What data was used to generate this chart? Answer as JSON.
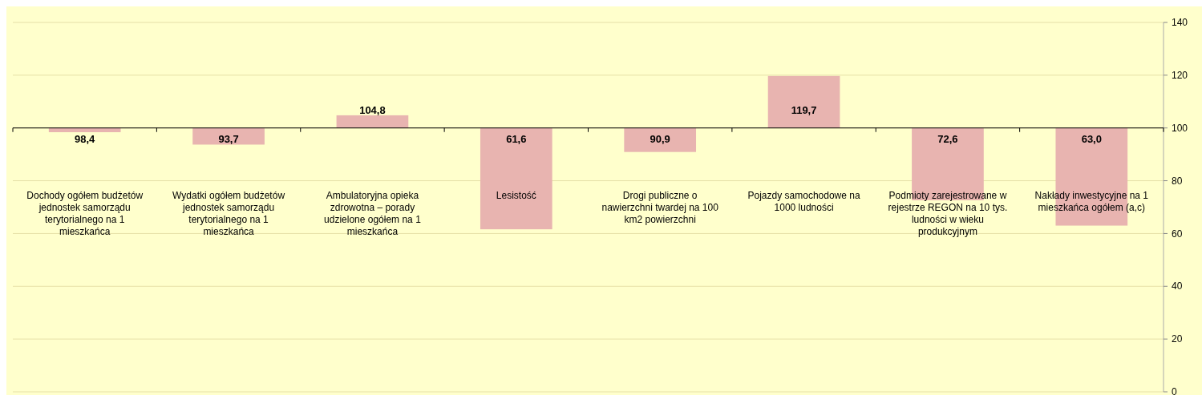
{
  "chart_data": {
    "type": "bar",
    "categories": [
      "Dochody ogółem budżetów jednostek samorządu terytorialnego na 1 mieszkańca",
      "Wydatki ogółem budżetów jednostek samorządu terytorialnego na 1 mieszkańca",
      "Ambulatoryjna opieka zdrowotna – porady udzielone ogółem na 1 mieszkańca",
      "Lesistość",
      "Drogi publiczne o nawierzchni twardej na 100 km2 powierzchni",
      "Pojazdy samochodowe na 1000 ludności",
      "Podmioty zarejestrowane w rejestrze REGON na 10 tys. ludności w wieku produkcyjnym",
      "Nakłady inwestycyjne na 1 mieszkańca ogółem (a,c)"
    ],
    "base": [
      100,
      100,
      100,
      100,
      100,
      100,
      100,
      100
    ],
    "values": [
      -1.6,
      -6.3,
      4.8,
      -38.4,
      -9.1,
      19.7,
      -27.4,
      -37.0
    ],
    "value_labels": [
      "98,4",
      "93,7",
      "104,8",
      "61,6",
      "90,9",
      "119,7",
      "72,6",
      "63,0"
    ],
    "color": "#e8b4b0",
    "ylim": [
      0,
      140
    ],
    "yticks": [
      0,
      20,
      40,
      60,
      80,
      100,
      120,
      140
    ],
    "grid": "y",
    "ref_lines": [
      {
        "axis": "y",
        "value": 100,
        "color": "#000000"
      }
    ]
  }
}
